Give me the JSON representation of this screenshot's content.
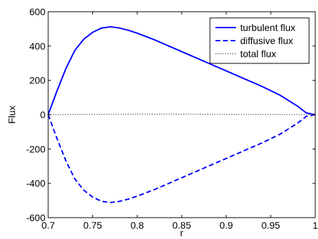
{
  "chart_data": {
    "type": "line",
    "title": "",
    "xlabel": "r",
    "ylabel": "Flux",
    "xlim": [
      0.7,
      1.0
    ],
    "ylim": [
      -600,
      600
    ],
    "grid": false,
    "legend_position": "top-right",
    "x_ticks": [
      "0.7",
      "0.75",
      "0.8",
      "0.85",
      "0.9",
      "0.95",
      "1"
    ],
    "y_ticks": [
      "-600",
      "-400",
      "-200",
      "0",
      "200",
      "400",
      "600"
    ],
    "x_tick_values": [
      0.7,
      0.75,
      0.8,
      0.85,
      0.9,
      0.95,
      1.0
    ],
    "y_tick_values": [
      -600,
      -400,
      -200,
      0,
      200,
      400,
      600
    ],
    "series": [
      {
        "name": "turbulent flux",
        "style": "solid",
        "color": "#0000ff",
        "x": [
          0.7,
          0.71,
          0.72,
          0.73,
          0.74,
          0.75,
          0.76,
          0.77,
          0.78,
          0.79,
          0.8,
          0.82,
          0.84,
          0.86,
          0.88,
          0.9,
          0.92,
          0.94,
          0.96,
          0.98,
          0.99,
          1.0
        ],
        "y": [
          0,
          140,
          270,
          375,
          440,
          480,
          505,
          512,
          505,
          492,
          475,
          435,
          390,
          345,
          300,
          255,
          210,
          165,
          115,
          50,
          10,
          0
        ]
      },
      {
        "name": "diffusive flux",
        "style": "dashed",
        "color": "#0000ff",
        "x": [
          0.7,
          0.71,
          0.72,
          0.73,
          0.74,
          0.75,
          0.76,
          0.77,
          0.78,
          0.79,
          0.8,
          0.82,
          0.84,
          0.86,
          0.88,
          0.9,
          0.92,
          0.94,
          0.96,
          0.98,
          0.99,
          1.0
        ],
        "y": [
          0,
          -140,
          -270,
          -375,
          -440,
          -480,
          -505,
          -512,
          -505,
          -492,
          -475,
          -435,
          -390,
          -345,
          -300,
          -255,
          -210,
          -165,
          -115,
          -50,
          -10,
          0
        ]
      },
      {
        "name": "total flux",
        "style": "dotted",
        "color": "#777777",
        "x": [
          0.7,
          0.75,
          0.8,
          0.85,
          0.9,
          0.95,
          1.0
        ],
        "y": [
          0,
          2,
          3,
          3,
          2,
          1,
          0
        ]
      }
    ]
  }
}
